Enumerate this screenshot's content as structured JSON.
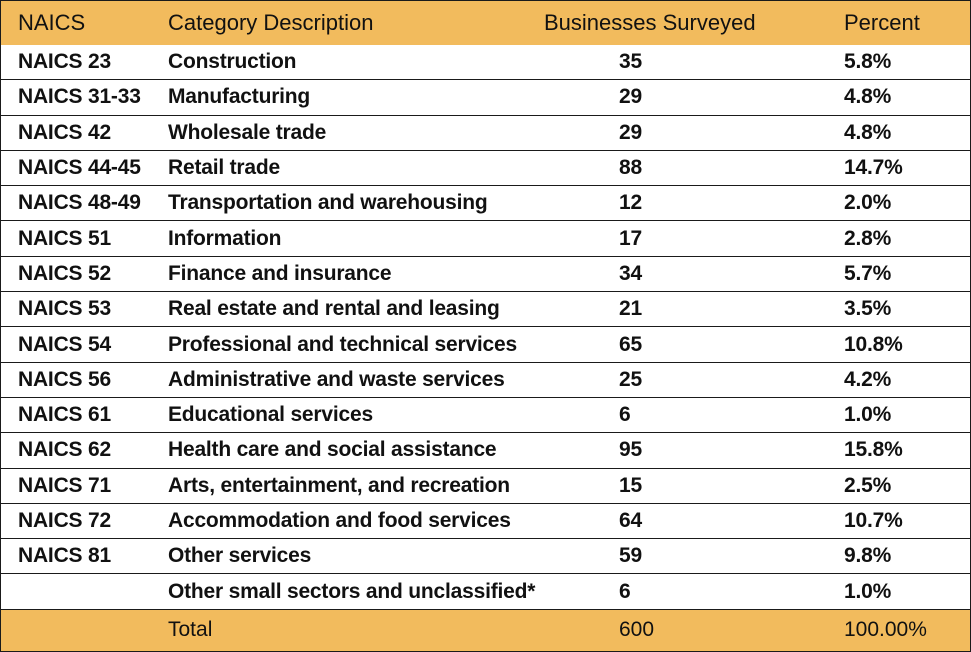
{
  "table": {
    "headers": {
      "naics": "NAICS",
      "category": "Category Description",
      "businesses": "Businesses Surveyed",
      "percent": "Percent"
    },
    "rows": [
      {
        "naics": "NAICS 23",
        "category": "Construction",
        "businesses": "35",
        "percent": "5.8%"
      },
      {
        "naics": "NAICS 31-33",
        "category": "Manufacturing",
        "businesses": "29",
        "percent": "4.8%"
      },
      {
        "naics": "NAICS 42",
        "category": "Wholesale trade",
        "businesses": "29",
        "percent": "4.8%"
      },
      {
        "naics": "NAICS 44-45",
        "category": "Retail trade",
        "businesses": "88",
        "percent": "14.7%"
      },
      {
        "naics": "NAICS 48-49",
        "category": "Transportation and warehousing",
        "businesses": "12",
        "percent": "2.0%"
      },
      {
        "naics": "NAICS 51",
        "category": "Information",
        "businesses": "17",
        "percent": "2.8%"
      },
      {
        "naics": "NAICS 52",
        "category": "Finance and insurance",
        "businesses": "34",
        "percent": "5.7%"
      },
      {
        "naics": "NAICS 53",
        "category": "Real estate and rental and leasing",
        "businesses": "21",
        "percent": "3.5%"
      },
      {
        "naics": "NAICS 54",
        "category": "Professional and technical services",
        "businesses": "65",
        "percent": "10.8%"
      },
      {
        "naics": "NAICS 56",
        "category": "Administrative and waste services",
        "businesses": "25",
        "percent": "4.2%"
      },
      {
        "naics": "NAICS 61",
        "category": "Educational services",
        "businesses": "6",
        "percent": "1.0%"
      },
      {
        "naics": "NAICS 62",
        "category": "Health care and social assistance",
        "businesses": "95",
        "percent": "15.8%"
      },
      {
        "naics": "NAICS 71",
        "category": "Arts, entertainment, and recreation",
        "businesses": "15",
        "percent": "2.5%"
      },
      {
        "naics": "NAICS 72",
        "category": "Accommodation and food services",
        "businesses": "64",
        "percent": "10.7%"
      },
      {
        "naics": "NAICS 81",
        "category": "Other services",
        "businesses": "59",
        "percent": "9.8%"
      },
      {
        "naics": "",
        "category": "Other small sectors and unclassified*",
        "businesses": "6",
        "percent": "1.0%"
      }
    ],
    "total": {
      "naics": "",
      "category": "Total",
      "businesses": "600",
      "percent": "100.00%"
    }
  },
  "colors": {
    "header_bg": "#f2bb5d",
    "border": "#1a1a1a",
    "text": "#111111"
  }
}
